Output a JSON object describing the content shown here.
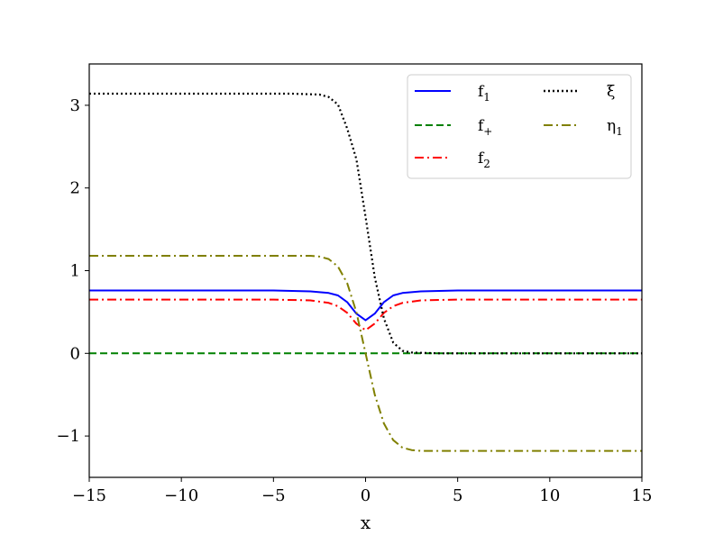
{
  "chart_data": {
    "type": "line",
    "title": "",
    "xlabel": "x",
    "ylabel": "",
    "xlim": [
      -15,
      15
    ],
    "ylim": [
      -1.5,
      3.5
    ],
    "xticks": [
      -15,
      -10,
      -5,
      0,
      5,
      10,
      15
    ],
    "xtick_labels": [
      "−15",
      "−10",
      "−5",
      "0",
      "5",
      "10",
      "15"
    ],
    "yticks": [
      -1,
      0,
      1,
      2,
      3
    ],
    "ytick_labels": [
      "−1",
      "0",
      "1",
      "2",
      "3"
    ],
    "grid": false,
    "legend_position": "top-right",
    "series": [
      {
        "name": "f1",
        "label_main": "f",
        "label_sub": "1",
        "color": "#0000ff",
        "style": "solid",
        "x": [
          -15,
          -5,
          -3,
          -2,
          -1.5,
          -1,
          -0.5,
          0,
          0.5,
          1,
          1.5,
          2,
          3,
          5,
          15
        ],
        "y": [
          0.76,
          0.76,
          0.75,
          0.73,
          0.7,
          0.62,
          0.48,
          0.4,
          0.48,
          0.62,
          0.7,
          0.73,
          0.75,
          0.76,
          0.76
        ]
      },
      {
        "name": "f+",
        "label_main": "f",
        "label_sub": "+",
        "color": "#008000",
        "style": "dashed",
        "x": [
          -15,
          15
        ],
        "y": [
          0.0,
          0.0
        ]
      },
      {
        "name": "f2",
        "label_main": "f",
        "label_sub": "2",
        "color": "#ff0000",
        "style": "dashdot",
        "x": [
          -15,
          -5,
          -3,
          -2,
          -1.5,
          -1,
          -0.5,
          0,
          0.5,
          1,
          1.5,
          2,
          3,
          5,
          15
        ],
        "y": [
          0.65,
          0.65,
          0.64,
          0.61,
          0.57,
          0.49,
          0.36,
          0.28,
          0.36,
          0.49,
          0.57,
          0.61,
          0.64,
          0.65,
          0.65
        ]
      },
      {
        "name": "xi",
        "label_main": "ξ",
        "label_sub": "",
        "color": "#000000",
        "style": "dotted",
        "x": [
          -15,
          -4,
          -2.5,
          -2,
          -1.5,
          -1,
          -0.5,
          0,
          0.5,
          1,
          1.5,
          2,
          2.5,
          4,
          15
        ],
        "y": [
          3.14,
          3.14,
          3.13,
          3.1,
          3.01,
          2.72,
          2.35,
          1.65,
          0.92,
          0.42,
          0.13,
          0.03,
          0.01,
          0.0,
          0.0
        ]
      },
      {
        "name": "eta1",
        "label_main": "η",
        "label_sub": "1",
        "color": "#808000",
        "style": "dashdot",
        "x": [
          -15,
          -3,
          -2.5,
          -2,
          -1.5,
          -1,
          -0.5,
          0,
          0.5,
          1,
          1.5,
          2,
          2.5,
          3,
          15
        ],
        "y": [
          1.18,
          1.18,
          1.17,
          1.14,
          1.05,
          0.85,
          0.5,
          0.0,
          -0.5,
          -0.85,
          -1.05,
          -1.14,
          -1.17,
          -1.18,
          -1.18
        ]
      }
    ]
  }
}
